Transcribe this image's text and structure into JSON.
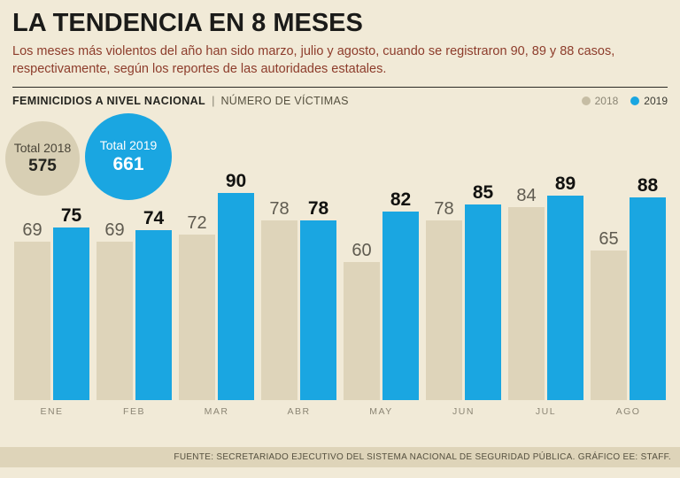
{
  "header": {
    "title": "LA TENDENCIA EN 8 MESES",
    "subtitle": "Los meses más violentos del año han sido marzo, julio y agosto, cuando se registraron 90, 89 y 88 casos, respectivamente, según los reportes de las autoridades estatales."
  },
  "section": {
    "title": "FEMINICIDIOS A NIVEL NACIONAL",
    "separator": "|",
    "subtitle": "NÚMERO DE VÍCTIMAS"
  },
  "legend": [
    {
      "label": "2018",
      "color": "#c6bda4"
    },
    {
      "label": "2019",
      "color": "#1aa6e1"
    }
  ],
  "totals": {
    "t2018": {
      "label": "Total 2018",
      "value": "575"
    },
    "t2019": {
      "label": "Total 2019",
      "value": "661"
    }
  },
  "chart_data": {
    "type": "bar",
    "title": "FEMINICIDIOS A NIVEL NACIONAL",
    "ylabel": "NÚMERO DE VÍCTIMAS",
    "categories": [
      "ENE",
      "FEB",
      "MAR",
      "ABR",
      "MAY",
      "JUN",
      "JUL",
      "AGO"
    ],
    "series": [
      {
        "name": "2018",
        "color": "#ded4ba",
        "values": [
          69,
          69,
          72,
          78,
          60,
          78,
          84,
          65
        ]
      },
      {
        "name": "2019",
        "color": "#1aa6e1",
        "values": [
          75,
          74,
          90,
          78,
          82,
          85,
          89,
          88
        ]
      }
    ],
    "totals": {
      "2018": 575,
      "2019": 661
    },
    "ylim": [
      0,
      95
    ],
    "grid": false,
    "legend_position": "top-right"
  },
  "footer": {
    "source": "FUENTE: SECRETARIADO EJECUTIVO DEL SISTEMA NACIONAL DE SEGURIDAD PÚBLICA. GRÁFICO EE: STAFF."
  }
}
